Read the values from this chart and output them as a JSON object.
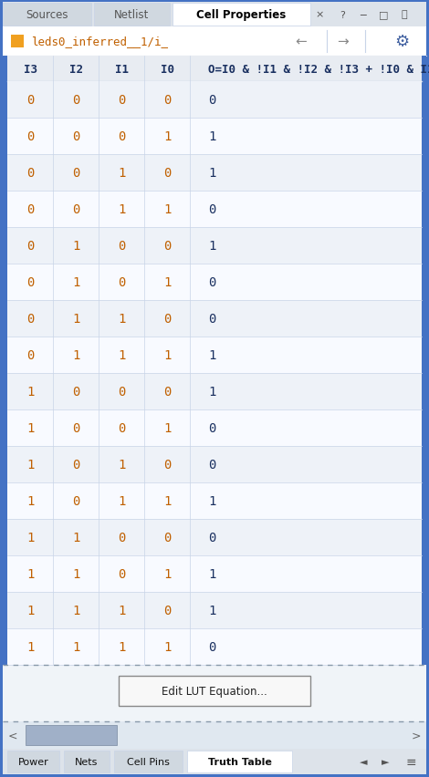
{
  "path_label": "leds0_inferred__1/i_",
  "headers": [
    "I3",
    "I2",
    "I1",
    "I0",
    "O=I0 & !I1 & !I2 & !I3 + !I0 & I1 & !"
  ],
  "rows": [
    [
      0,
      0,
      0,
      0,
      0
    ],
    [
      0,
      0,
      0,
      1,
      1
    ],
    [
      0,
      0,
      1,
      0,
      1
    ],
    [
      0,
      0,
      1,
      1,
      0
    ],
    [
      0,
      1,
      0,
      0,
      1
    ],
    [
      0,
      1,
      0,
      1,
      0
    ],
    [
      0,
      1,
      1,
      0,
      0
    ],
    [
      0,
      1,
      1,
      1,
      1
    ],
    [
      1,
      0,
      0,
      0,
      1
    ],
    [
      1,
      0,
      0,
      1,
      0
    ],
    [
      1,
      0,
      1,
      0,
      0
    ],
    [
      1,
      0,
      1,
      1,
      1
    ],
    [
      1,
      1,
      0,
      0,
      0
    ],
    [
      1,
      1,
      0,
      1,
      1
    ],
    [
      1,
      1,
      1,
      0,
      1
    ],
    [
      1,
      1,
      1,
      1,
      0
    ]
  ],
  "bg_outer": "#4472c4",
  "bg_window": "#f0f4f8",
  "tab_bar_bg": "#dde3ea",
  "tab_active_bg": "#ffffff",
  "tab_inactive_bg": "#d0d8e0",
  "tab_active_text": "#000000",
  "tab_inactive_text": "#555555",
  "path_bar_bg": "#ffffff",
  "header_bg": "#e8ecf2",
  "row_bg_even": "#eef2f8",
  "row_bg_odd": "#f8faff",
  "border_color": "#4472c4",
  "header_text_color": "#1a3060",
  "cell_text_input": "#c06000",
  "cell_text_output": "#1a3060",
  "grid_color": "#c8d4e8",
  "orange_icon": "#f0a020",
  "arrow_color": "#888888",
  "gear_color": "#4060a0",
  "button_text": "Edit LUT Equation...",
  "bottom_tabs": [
    "Power",
    "Nets",
    "Cell Pins",
    "Truth Table"
  ],
  "bottom_active_tab": "Truth Table",
  "scrollbar_thumb": "#a0b0c8",
  "scrollbar_bg": "#e0e8f0",
  "dashed_color": "#8899aa",
  "control_color": "#555555"
}
